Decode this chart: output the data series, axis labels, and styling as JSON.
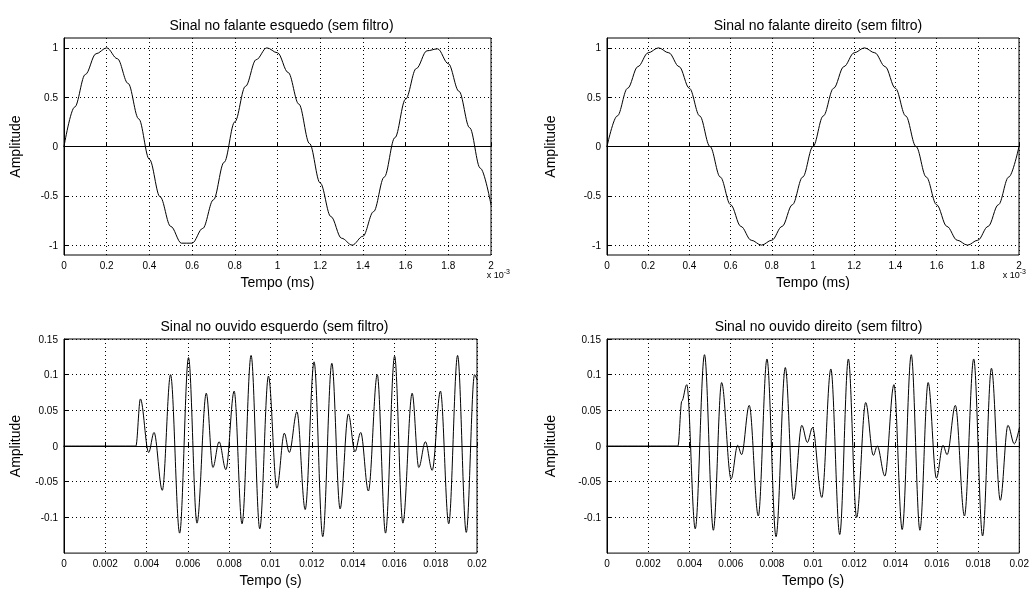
{
  "chart_data": [
    {
      "type": "line",
      "title": "Sinal no falante esquedo (sem filtro)",
      "xlabel": "Tempo (ms)",
      "ylabel": "Amplitude",
      "annotations": [
        "x 10$^{-3}$"
      ],
      "color": "#000000",
      "line_style": "solid",
      "grid": true,
      "xlim": [
        0,
        2
      ],
      "xticks": [
        0,
        0.2,
        0.4,
        0.6,
        0.8,
        1,
        1.2,
        1.4,
        1.6,
        1.8,
        2
      ],
      "ylim": [
        -1.1,
        1.1
      ],
      "yticks": [
        -1,
        -0.5,
        0,
        0.5,
        1
      ],
      "x": [
        0,
        0.05,
        0.1,
        0.15,
        0.2,
        0.25,
        0.3,
        0.35,
        0.4,
        0.45,
        0.5,
        0.55,
        0.6,
        0.65,
        0.7,
        0.75,
        0.8,
        0.85,
        0.9,
        0.95,
        1,
        1.05,
        1.1,
        1.15,
        1.2,
        1.25,
        1.3,
        1.35,
        1.4,
        1.45,
        1.5,
        1.55,
        1.6,
        1.65,
        1.7,
        1.75,
        1.8,
        1.85,
        1.9,
        1.95,
        2
      ],
      "values": [
        0,
        0.4,
        0.73,
        0.94,
        1,
        0.89,
        0.64,
        0.28,
        -0.13,
        -0.51,
        -0.81,
        -0.98,
        -0.98,
        -0.83,
        -0.54,
        -0.16,
        0.25,
        0.61,
        0.88,
        1,
        0.95,
        0.75,
        0.43,
        0.03,
        -0.37,
        -0.71,
        -0.93,
        -1,
        -0.91,
        -0.66,
        -0.31,
        0.09,
        0.48,
        0.79,
        0.97,
        0.99,
        0.84,
        0.56,
        0.19,
        -0.22,
        -0.59
      ]
    },
    {
      "type": "line",
      "title": "Sinal no falante direito (sem filtro)",
      "xlabel": "Tempo (ms)",
      "ylabel": "Amplitude",
      "annotations": [
        "x 10$^{-3}$"
      ],
      "color": "#000000",
      "line_style": "solid",
      "grid": true,
      "xlim": [
        0,
        2
      ],
      "xticks": [
        0,
        0.2,
        0.4,
        0.6,
        0.8,
        1,
        1.2,
        1.4,
        1.6,
        1.8,
        2
      ],
      "ylim": [
        -1.1,
        1.1
      ],
      "yticks": [
        -1,
        -0.5,
        0,
        0.5,
        1
      ],
      "x": [
        0,
        0.05,
        0.1,
        0.15,
        0.2,
        0.25,
        0.3,
        0.35,
        0.4,
        0.45,
        0.5,
        0.55,
        0.6,
        0.65,
        0.7,
        0.75,
        0.8,
        0.85,
        0.9,
        0.95,
        1,
        1.05,
        1.1,
        1.15,
        1.2,
        1.25,
        1.3,
        1.35,
        1.4,
        1.45,
        1.5,
        1.55,
        1.6,
        1.65,
        1.7,
        1.75,
        1.8,
        1.85,
        1.9,
        1.95,
        2
      ],
      "values": [
        0,
        0.31,
        0.59,
        0.81,
        0.95,
        1,
        0.95,
        0.81,
        0.59,
        0.31,
        0,
        -0.31,
        -0.59,
        -0.81,
        -0.95,
        -1,
        -0.95,
        -0.81,
        -0.59,
        -0.31,
        0,
        0.31,
        0.59,
        0.81,
        0.95,
        1,
        0.95,
        0.81,
        0.59,
        0.31,
        0,
        -0.31,
        -0.59,
        -0.81,
        -0.95,
        -1,
        -0.95,
        -0.81,
        -0.59,
        -0.31,
        0
      ]
    },
    {
      "type": "line",
      "title": "Sinal no ouvido esquerdo (sem filtro)",
      "xlabel": "Tempo (s)",
      "ylabel": "Amplitude",
      "color": "#000000",
      "line_style": "solid",
      "grid": true,
      "xlim": [
        0,
        0.02
      ],
      "xticks": [
        0,
        0.002,
        0.004,
        0.006,
        0.008,
        0.01,
        0.012,
        0.014,
        0.016,
        0.018,
        0.02
      ],
      "ylim": [
        -0.15,
        0.15
      ],
      "yticks": [
        -0.1,
        -0.05,
        0,
        0.05,
        0.1,
        0.15
      ],
      "x": [
        0,
        0.00348,
        0.0037,
        0.0041,
        0.00436,
        0.00476,
        0.00516,
        0.0056,
        0.00603,
        0.00644,
        0.00689,
        0.00721,
        0.00751,
        0.00784,
        0.00824,
        0.00862,
        0.00906,
        0.00948,
        0.0099,
        0.01031,
        0.01067,
        0.01091,
        0.01128,
        0.01168,
        0.01211,
        0.01253,
        0.01297,
        0.01337,
        0.01377,
        0.01409,
        0.01437,
        0.01474,
        0.01517,
        0.01557,
        0.01601,
        0.01641,
        0.01686,
        0.01718,
        0.0175,
        0.01783,
        0.01823,
        0.01863,
        0.01906,
        0.01948,
        0.01988,
        0.02
      ],
      "values": [
        0,
        0,
        0.066,
        -0.009,
        0.019,
        -0.062,
        0.1,
        -0.122,
        0.124,
        -0.108,
        0.074,
        -0.03,
        0.006,
        -0.033,
        0.077,
        -0.109,
        0.127,
        -0.116,
        0.098,
        -0.059,
        0.018,
        -0.009,
        0.048,
        -0.089,
        0.118,
        -0.127,
        0.116,
        -0.088,
        0.045,
        -0.008,
        0.019,
        -0.063,
        0.1,
        -0.122,
        0.126,
        -0.108,
        0.074,
        -0.03,
        0.006,
        -0.034,
        0.077,
        -0.109,
        0.127,
        -0.121,
        0.1,
        0.093
      ]
    },
    {
      "type": "line",
      "title": "Sinal no ouvido direito (sem filtro)",
      "xlabel": "Tempo (s)",
      "ylabel": "Amplitude",
      "color": "#000000",
      "line_style": "solid",
      "grid": true,
      "xlim": [
        0,
        0.02
      ],
      "xticks": [
        0,
        0.002,
        0.004,
        0.006,
        0.008,
        0.01,
        0.012,
        0.014,
        0.016,
        0.018,
        0.02
      ],
      "ylim": [
        -0.15,
        0.15
      ],
      "yticks": [
        -0.1,
        -0.05,
        0,
        0.05,
        0.1,
        0.15
      ],
      "x": [
        0,
        0.00344,
        0.00363,
        0.00387,
        0.00428,
        0.00473,
        0.00516,
        0.00556,
        0.00602,
        0.00634,
        0.00653,
        0.0069,
        0.00734,
        0.00776,
        0.0082,
        0.00865,
        0.00905,
        0.00945,
        0.00972,
        0.00997,
        0.01042,
        0.01086,
        0.01129,
        0.01171,
        0.01211,
        0.01255,
        0.01292,
        0.01311,
        0.01348,
        0.01392,
        0.01432,
        0.01476,
        0.01518,
        0.01558,
        0.01598,
        0.0163,
        0.0165,
        0.0169,
        0.01734,
        0.01779,
        0.01822,
        0.01865,
        0.01908,
        0.01945,
        0.01976,
        0.02
      ],
      "values": [
        0,
        0,
        0.063,
        0.086,
        -0.116,
        0.128,
        -0.118,
        0.089,
        -0.046,
        0.001,
        -0.012,
        0.057,
        -0.098,
        0.122,
        -0.127,
        0.11,
        -0.075,
        0.029,
        0.005,
        0.026,
        -0.072,
        0.108,
        -0.124,
        0.122,
        -0.1,
        0.061,
        -0.013,
        0,
        -0.042,
        0.086,
        -0.117,
        0.128,
        -0.118,
        0.089,
        -0.045,
        0.001,
        -0.012,
        0.057,
        -0.098,
        0.122,
        -0.126,
        0.109,
        -0.076,
        0.029,
        0.003,
        0.025
      ]
    }
  ]
}
